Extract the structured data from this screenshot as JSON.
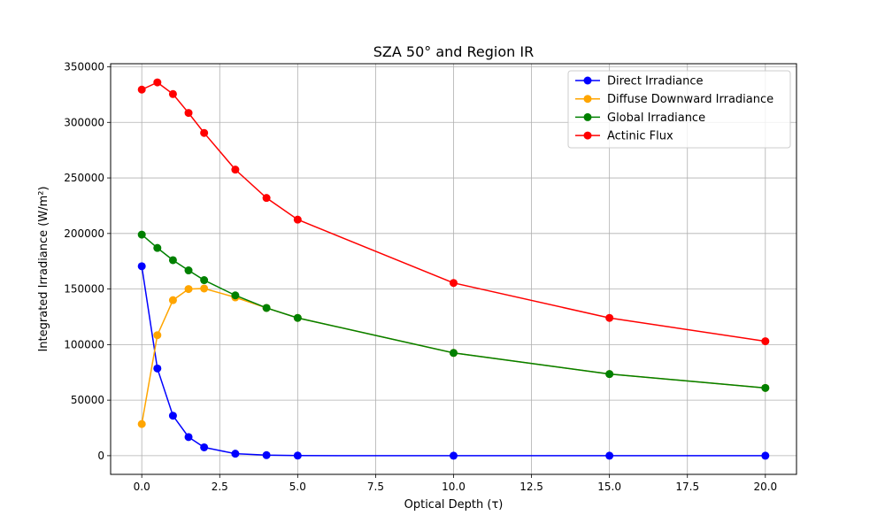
{
  "chart_data": {
    "type": "line",
    "title": "SZA 50° and Region IR",
    "xlabel": "Optical Depth (τ)",
    "ylabel": "Integrated Irradiance (W/m²)",
    "xlim": [
      -0.999,
      20.999
    ],
    "ylim": [
      -16800,
      352800
    ],
    "x_ticks": [
      0,
      2.5,
      5,
      7.5,
      10,
      12.5,
      15,
      17.5,
      20
    ],
    "x_tick_labels": [
      "0.0",
      "2.5",
      "5.0",
      "7.5",
      "10.0",
      "12.5",
      "15.0",
      "17.5",
      "20.0"
    ],
    "y_ticks": [
      0,
      50000,
      100000,
      150000,
      200000,
      250000,
      300000,
      350000
    ],
    "y_tick_labels": [
      "0",
      "50000",
      "100000",
      "150000",
      "200000",
      "250000",
      "300000",
      "350000"
    ],
    "grid": true,
    "legend_position": "top-right",
    "x": [
      0,
      0.5,
      1,
      1.5,
      2,
      3,
      4,
      5,
      10,
      15,
      20
    ],
    "series": [
      {
        "name": "Direct Irradiance",
        "color": "#0000ff",
        "values": [
          170500,
          78500,
          36000,
          16800,
          7500,
          1800,
          500,
          100,
          0,
          0,
          0
        ]
      },
      {
        "name": "Diffuse Downward Irradiance",
        "color": "#ffa500",
        "values": [
          28500,
          108500,
          140000,
          150000,
          150500,
          142500,
          133000,
          124000,
          92500,
          73500,
          61000
        ]
      },
      {
        "name": "Global Irradiance",
        "color": "#008000",
        "values": [
          199000,
          187000,
          176000,
          166800,
          158000,
          144300,
          133000,
          124000,
          92500,
          73500,
          61000
        ]
      },
      {
        "name": "Actinic Flux",
        "color": "#ff0000",
        "values": [
          329500,
          336000,
          325500,
          308500,
          290500,
          257500,
          232000,
          212500,
          155500,
          124000,
          103000
        ]
      }
    ]
  }
}
